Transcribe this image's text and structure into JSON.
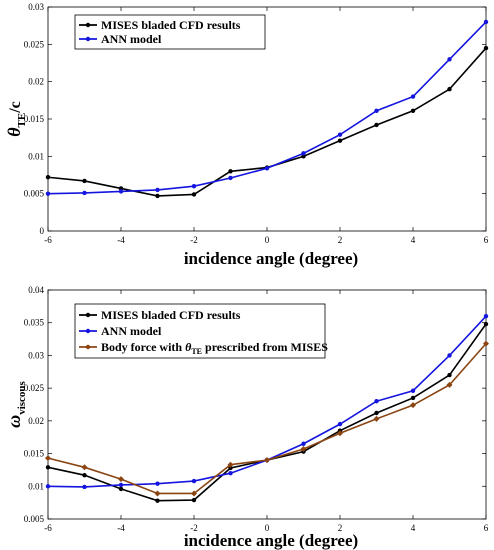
{
  "chart_data": [
    {
      "type": "line",
      "xlabel": "incidence angle (degree)",
      "ylabel": {
        "main": "θ",
        "sub": "TE",
        "suffix": "/c"
      },
      "xlim": [
        -6,
        6
      ],
      "ylim": [
        0,
        0.03
      ],
      "xticks": [
        -6,
        -4,
        -2,
        0,
        2,
        4,
        6
      ],
      "yticks": [
        0,
        0.005,
        0.01,
        0.015,
        0.02,
        0.025,
        0.03
      ],
      "ytick_labels": [
        "0",
        "0.005",
        "0.01",
        "0.015",
        "0.02",
        "0.025",
        "0.03"
      ],
      "grid": false,
      "legend_position": "top-left",
      "x": [
        -6,
        -5,
        -4,
        -3,
        -2,
        -1,
        0,
        1,
        2,
        3,
        4,
        5,
        6
      ],
      "series": [
        {
          "name": "MISES bladed CFD results",
          "color": "#000000",
          "legend_parts": [
            {
              "text": "MISES bladed CFD results"
            }
          ],
          "values": [
            0.0072,
            0.0067,
            0.0057,
            0.0047,
            0.0049,
            0.008,
            0.0085,
            0.01,
            0.0121,
            0.0142,
            0.0161,
            0.019,
            0.0245
          ]
        },
        {
          "name": "ANN model",
          "color": "#1515e0",
          "legend_parts": [
            {
              "text": "ANN model"
            }
          ],
          "values": [
            0.005,
            0.0051,
            0.0053,
            0.0055,
            0.006,
            0.0071,
            0.0084,
            0.0104,
            0.0129,
            0.0161,
            0.018,
            0.023,
            0.028
          ]
        }
      ]
    },
    {
      "type": "line",
      "xlabel": "incidence angle (degree)",
      "ylabel": {
        "main": "ω",
        "sub": "viscous",
        "suffix": ""
      },
      "xlim": [
        -6,
        6
      ],
      "ylim": [
        0.005,
        0.04
      ],
      "xticks": [
        -6,
        -4,
        -2,
        0,
        2,
        4,
        6
      ],
      "yticks": [
        0.005,
        0.01,
        0.015,
        0.02,
        0.025,
        0.03,
        0.035,
        0.04
      ],
      "ytick_labels": [
        "0.005",
        "0.01",
        "0.015",
        "0.02",
        "0.025",
        "0.03",
        "0.035",
        "0.04"
      ],
      "grid": false,
      "legend_position": "top-left",
      "x": [
        -6,
        -5,
        -4,
        -3,
        -2,
        -1,
        0,
        1,
        2,
        3,
        4,
        5,
        6
      ],
      "series": [
        {
          "name": "MISES bladed CFD results",
          "color": "#000000",
          "legend_parts": [
            {
              "text": "MISES bladed CFD results"
            }
          ],
          "values": [
            0.0129,
            0.0117,
            0.0096,
            0.0078,
            0.0079,
            0.0128,
            0.014,
            0.0153,
            0.0185,
            0.0212,
            0.0235,
            0.027,
            0.0348
          ]
        },
        {
          "name": "ANN model",
          "color": "#1515e0",
          "legend_parts": [
            {
              "text": "ANN model"
            }
          ],
          "values": [
            0.01,
            0.0099,
            0.0102,
            0.0104,
            0.0108,
            0.012,
            0.014,
            0.0165,
            0.0195,
            0.023,
            0.0246,
            0.03,
            0.036
          ]
        },
        {
          "name": "Body force with θTE prescribed from MISES",
          "color": "#8b4513",
          "legend_parts": [
            {
              "text": "Body force with "
            },
            {
              "text": "θ",
              "italic": true
            },
            {
              "text": "TE",
              "sub": true
            },
            {
              "text": " prescribed from MISES"
            }
          ],
          "values": [
            0.0143,
            0.0129,
            0.0111,
            0.0089,
            0.0089,
            0.0133,
            0.014,
            0.0157,
            0.0181,
            0.0203,
            0.0224,
            0.0255,
            0.0318
          ]
        }
      ]
    }
  ]
}
